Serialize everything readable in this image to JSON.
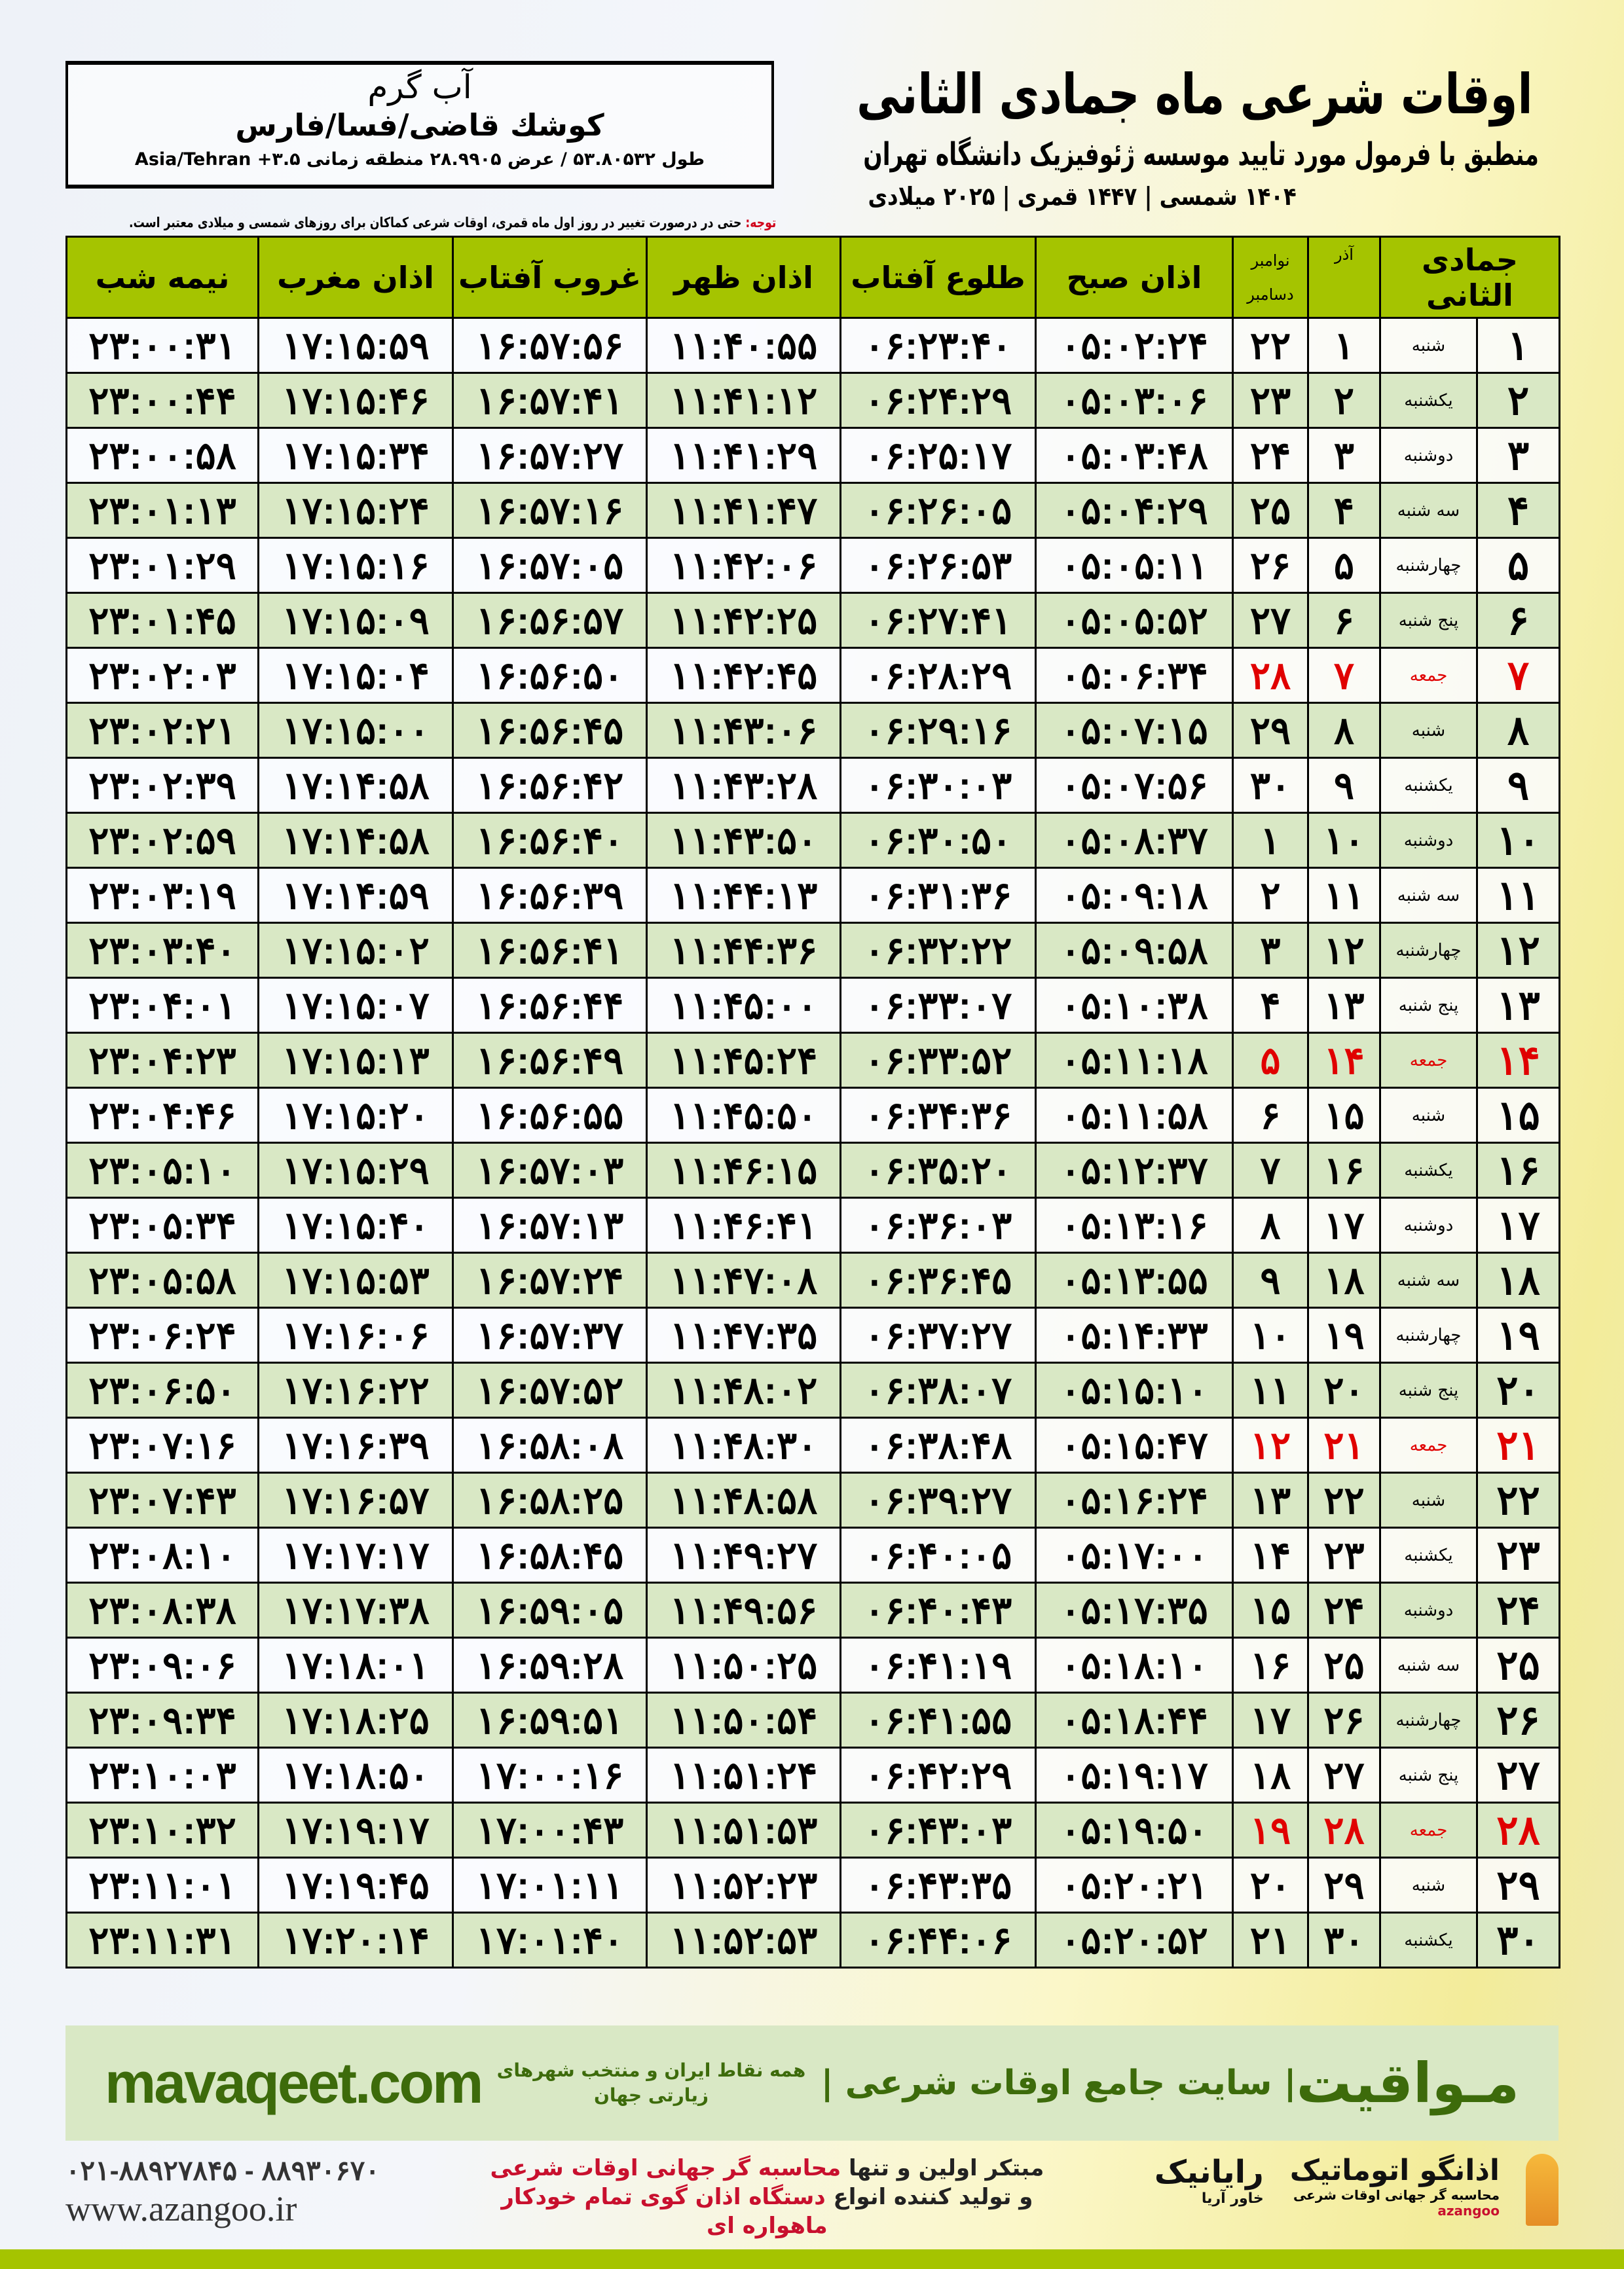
{
  "header": {
    "title": "اوقات شرعی ماه جمادی الثانی",
    "subtitle": "منطبق با فرمول مورد تایید موسسه ژئوفیزیک دانشگاه تهران",
    "dateline": "۱۴۰۴ شمسی | ۱۴۴۷ قمری | ۲۰۲۵ میلادی"
  },
  "location": {
    "city": "آب گرم",
    "region": "کوشك قاضی/فسا/فارس",
    "coords": "طول ۵۳.۸۰۵۳۲ / عرض ۲۸.۹۹۰۵ منطقه زمانی Asia/Tehran +۳.۵"
  },
  "note": {
    "label": "توجه:",
    "text": " حتی در درصورت تغییر در روز اول ماه قمری، اوقات شرعی کماکان برای روزهای شمسی و میلادی معتبر است."
  },
  "table": {
    "headers": {
      "hijri": "جمادی الثانی",
      "azar": "آذر",
      "greg_top": "نوامبر",
      "greg_bottom": "دسامبر",
      "fajr": "اذان صبح",
      "sunrise": "طلوع آفتاب",
      "dhuhr": "اذان ظهر",
      "sunset": "غروب آفتاب",
      "maghrib": "اذان مغرب",
      "midnight": "نیمه شب"
    },
    "holiday_color": "#e00000",
    "rows": [
      [
        "۱",
        "شنبه",
        "۱",
        "۲۲",
        "۰۵:۰۲:۲۴",
        "۰۶:۲۳:۴۰",
        "۱۱:۴۰:۵۵",
        "۱۶:۵۷:۵۶",
        "۱۷:۱۵:۵۹",
        "۲۳:۰۰:۳۱",
        false
      ],
      [
        "۲",
        "یکشنبه",
        "۲",
        "۲۳",
        "۰۵:۰۳:۰۶",
        "۰۶:۲۴:۲۹",
        "۱۱:۴۱:۱۲",
        "۱۶:۵۷:۴۱",
        "۱۷:۱۵:۴۶",
        "۲۳:۰۰:۴۴",
        false
      ],
      [
        "۳",
        "دوشنبه",
        "۳",
        "۲۴",
        "۰۵:۰۳:۴۸",
        "۰۶:۲۵:۱۷",
        "۱۱:۴۱:۲۹",
        "۱۶:۵۷:۲۷",
        "۱۷:۱۵:۳۴",
        "۲۳:۰۰:۵۸",
        false
      ],
      [
        "۴",
        "سه شنبه",
        "۴",
        "۲۵",
        "۰۵:۰۴:۲۹",
        "۰۶:۲۶:۰۵",
        "۱۱:۴۱:۴۷",
        "۱۶:۵۷:۱۶",
        "۱۷:۱۵:۲۴",
        "۲۳:۰۱:۱۳",
        false
      ],
      [
        "۵",
        "چهارشنبه",
        "۵",
        "۲۶",
        "۰۵:۰۵:۱۱",
        "۰۶:۲۶:۵۳",
        "۱۱:۴۲:۰۶",
        "۱۶:۵۷:۰۵",
        "۱۷:۱۵:۱۶",
        "۲۳:۰۱:۲۹",
        false
      ],
      [
        "۶",
        "پنج شنبه",
        "۶",
        "۲۷",
        "۰۵:۰۵:۵۲",
        "۰۶:۲۷:۴۱",
        "۱۱:۴۲:۲۵",
        "۱۶:۵۶:۵۷",
        "۱۷:۱۵:۰۹",
        "۲۳:۰۱:۴۵",
        false
      ],
      [
        "۷",
        "جمعه",
        "۷",
        "۲۸",
        "۰۵:۰۶:۳۴",
        "۰۶:۲۸:۲۹",
        "۱۱:۴۲:۴۵",
        "۱۶:۵۶:۵۰",
        "۱۷:۱۵:۰۴",
        "۲۳:۰۲:۰۳",
        true
      ],
      [
        "۸",
        "شنبه",
        "۸",
        "۲۹",
        "۰۵:۰۷:۱۵",
        "۰۶:۲۹:۱۶",
        "۱۱:۴۳:۰۶",
        "۱۶:۵۶:۴۵",
        "۱۷:۱۵:۰۰",
        "۲۳:۰۲:۲۱",
        false
      ],
      [
        "۹",
        "یکشنبه",
        "۹",
        "۳۰",
        "۰۵:۰۷:۵۶",
        "۰۶:۳۰:۰۳",
        "۱۱:۴۳:۲۸",
        "۱۶:۵۶:۴۲",
        "۱۷:۱۴:۵۸",
        "۲۳:۰۲:۳۹",
        false
      ],
      [
        "۱۰",
        "دوشنبه",
        "۱۰",
        "۱",
        "۰۵:۰۸:۳۷",
        "۰۶:۳۰:۵۰",
        "۱۱:۴۳:۵۰",
        "۱۶:۵۶:۴۰",
        "۱۷:۱۴:۵۸",
        "۲۳:۰۲:۵۹",
        false
      ],
      [
        "۱۱",
        "سه شنبه",
        "۱۱",
        "۲",
        "۰۵:۰۹:۱۸",
        "۰۶:۳۱:۳۶",
        "۱۱:۴۴:۱۳",
        "۱۶:۵۶:۳۹",
        "۱۷:۱۴:۵۹",
        "۲۳:۰۳:۱۹",
        false
      ],
      [
        "۱۲",
        "چهارشنبه",
        "۱۲",
        "۳",
        "۰۵:۰۹:۵۸",
        "۰۶:۳۲:۲۲",
        "۱۱:۴۴:۳۶",
        "۱۶:۵۶:۴۱",
        "۱۷:۱۵:۰۲",
        "۲۳:۰۳:۴۰",
        false
      ],
      [
        "۱۳",
        "پنج شنبه",
        "۱۳",
        "۴",
        "۰۵:۱۰:۳۸",
        "۰۶:۳۳:۰۷",
        "۱۱:۴۵:۰۰",
        "۱۶:۵۶:۴۴",
        "۱۷:۱۵:۰۷",
        "۲۳:۰۴:۰۱",
        false
      ],
      [
        "۱۴",
        "جمعه",
        "۱۴",
        "۵",
        "۰۵:۱۱:۱۸",
        "۰۶:۳۳:۵۲",
        "۱۱:۴۵:۲۴",
        "۱۶:۵۶:۴۹",
        "۱۷:۱۵:۱۳",
        "۲۳:۰۴:۲۳",
        true
      ],
      [
        "۱۵",
        "شنبه",
        "۱۵",
        "۶",
        "۰۵:۱۱:۵۸",
        "۰۶:۳۴:۳۶",
        "۱۱:۴۵:۵۰",
        "۱۶:۵۶:۵۵",
        "۱۷:۱۵:۲۰",
        "۲۳:۰۴:۴۶",
        false
      ],
      [
        "۱۶",
        "یکشنبه",
        "۱۶",
        "۷",
        "۰۵:۱۲:۳۷",
        "۰۶:۳۵:۲۰",
        "۱۱:۴۶:۱۵",
        "۱۶:۵۷:۰۳",
        "۱۷:۱۵:۲۹",
        "۲۳:۰۵:۱۰",
        false
      ],
      [
        "۱۷",
        "دوشنبه",
        "۱۷",
        "۸",
        "۰۵:۱۳:۱۶",
        "۰۶:۳۶:۰۳",
        "۱۱:۴۶:۴۱",
        "۱۶:۵۷:۱۳",
        "۱۷:۱۵:۴۰",
        "۲۳:۰۵:۳۴",
        false
      ],
      [
        "۱۸",
        "سه شنبه",
        "۱۸",
        "۹",
        "۰۵:۱۳:۵۵",
        "۰۶:۳۶:۴۵",
        "۱۱:۴۷:۰۸",
        "۱۶:۵۷:۲۴",
        "۱۷:۱۵:۵۳",
        "۲۳:۰۵:۵۸",
        false
      ],
      [
        "۱۹",
        "چهارشنبه",
        "۱۹",
        "۱۰",
        "۰۵:۱۴:۳۳",
        "۰۶:۳۷:۲۷",
        "۱۱:۴۷:۳۵",
        "۱۶:۵۷:۳۷",
        "۱۷:۱۶:۰۶",
        "۲۳:۰۶:۲۴",
        false
      ],
      [
        "۲۰",
        "پنج شنبه",
        "۲۰",
        "۱۱",
        "۰۵:۱۵:۱۰",
        "۰۶:۳۸:۰۷",
        "۱۱:۴۸:۰۲",
        "۱۶:۵۷:۵۲",
        "۱۷:۱۶:۲۲",
        "۲۳:۰۶:۵۰",
        false
      ],
      [
        "۲۱",
        "جمعه",
        "۲۱",
        "۱۲",
        "۰۵:۱۵:۴۷",
        "۰۶:۳۸:۴۸",
        "۱۱:۴۸:۳۰",
        "۱۶:۵۸:۰۸",
        "۱۷:۱۶:۳۹",
        "۲۳:۰۷:۱۶",
        true
      ],
      [
        "۲۲",
        "شنبه",
        "۲۲",
        "۱۳",
        "۰۵:۱۶:۲۴",
        "۰۶:۳۹:۲۷",
        "۱۱:۴۸:۵۸",
        "۱۶:۵۸:۲۵",
        "۱۷:۱۶:۵۷",
        "۲۳:۰۷:۴۳",
        false
      ],
      [
        "۲۳",
        "یکشنبه",
        "۲۳",
        "۱۴",
        "۰۵:۱۷:۰۰",
        "۰۶:۴۰:۰۵",
        "۱۱:۴۹:۲۷",
        "۱۶:۵۸:۴۵",
        "۱۷:۱۷:۱۷",
        "۲۳:۰۸:۱۰",
        false
      ],
      [
        "۲۴",
        "دوشنبه",
        "۲۴",
        "۱۵",
        "۰۵:۱۷:۳۵",
        "۰۶:۴۰:۴۳",
        "۱۱:۴۹:۵۶",
        "۱۶:۵۹:۰۵",
        "۱۷:۱۷:۳۸",
        "۲۳:۰۸:۳۸",
        false
      ],
      [
        "۲۵",
        "سه شنبه",
        "۲۵",
        "۱۶",
        "۰۵:۱۸:۱۰",
        "۰۶:۴۱:۱۹",
        "۱۱:۵۰:۲۵",
        "۱۶:۵۹:۲۸",
        "۱۷:۱۸:۰۱",
        "۲۳:۰۹:۰۶",
        false
      ],
      [
        "۲۶",
        "چهارشنبه",
        "۲۶",
        "۱۷",
        "۰۵:۱۸:۴۴",
        "۰۶:۴۱:۵۵",
        "۱۱:۵۰:۵۴",
        "۱۶:۵۹:۵۱",
        "۱۷:۱۸:۲۵",
        "۲۳:۰۹:۳۴",
        false
      ],
      [
        "۲۷",
        "پنج شنبه",
        "۲۷",
        "۱۸",
        "۰۵:۱۹:۱۷",
        "۰۶:۴۲:۲۹",
        "۱۱:۵۱:۲۴",
        "۱۷:۰۰:۱۶",
        "۱۷:۱۸:۵۰",
        "۲۳:۱۰:۰۳",
        false
      ],
      [
        "۲۸",
        "جمعه",
        "۲۸",
        "۱۹",
        "۰۵:۱۹:۵۰",
        "۰۶:۴۳:۰۳",
        "۱۱:۵۱:۵۳",
        "۱۷:۰۰:۴۳",
        "۱۷:۱۹:۱۷",
        "۲۳:۱۰:۳۲",
        true
      ],
      [
        "۲۹",
        "شنبه",
        "۲۹",
        "۲۰",
        "۰۵:۲۰:۲۱",
        "۰۶:۴۳:۳۵",
        "۱۱:۵۲:۲۳",
        "۱۷:۰۱:۱۱",
        "۱۷:۱۹:۴۵",
        "۲۳:۱۱:۰۱",
        false
      ],
      [
        "۳۰",
        "یکشنبه",
        "۳۰",
        "۲۱",
        "۰۵:۲۰:۵۲",
        "۰۶:۴۴:۰۶",
        "۱۱:۵۲:۵۳",
        "۱۷:۰۱:۴۰",
        "۱۷:۲۰:۱۴",
        "۲۳:۱۱:۳۱",
        false
      ]
    ]
  },
  "footer": {
    "brand": "مـواقیت",
    "brand_sub": "| سایت جامع اوقات شرعی |",
    "brand_tag": "همه نقاط ایران و منتخب شهرهای زیارتی جهان",
    "site": "mavaqeet.com",
    "phones": "۰۲۱-۸۸۹۲۷۸۴۵ - ۸۸۹۳۰۶۷۰",
    "web": "www.azangoo.ir",
    "promo1a": "مبتکر اولین و تنها ",
    "promo1b": "محاسبه گر جهانی اوقات شرعی",
    "promo2a": "و تولید کننده انواع ",
    "promo2b": "دستگاه اذان گوی تمام خودکار ماهواره ای",
    "logo_rayanik": "رایانیک",
    "logo_rayanik_sub": "خاور آریا",
    "logo_azangoo": "اذانگو اتوماتیک",
    "logo_azangoo_sub": "محاسبه گر جهانی اوقات شرعی",
    "logo_azangoo_en": "azangoo",
    "accent_green": "#a5c400",
    "brand_green": "#3d6b0b"
  }
}
